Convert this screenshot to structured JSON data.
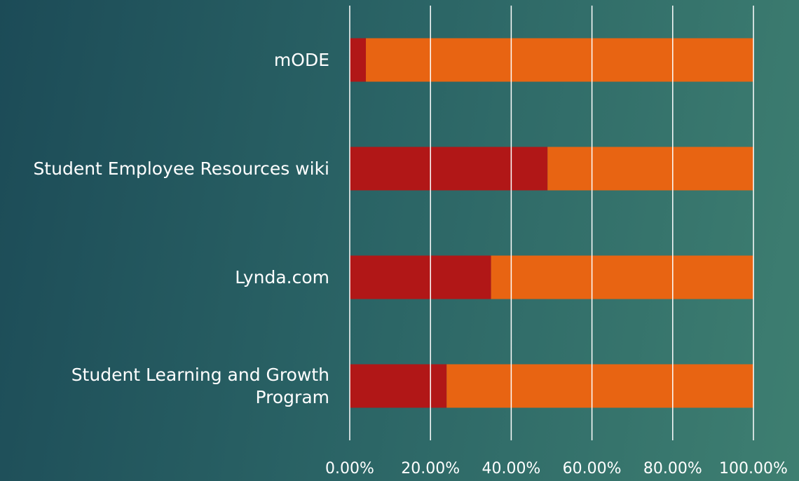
{
  "chart_data": {
    "type": "stacked_barh",
    "categories": [
      "mODE",
      "Student Employee Resources wiki",
      "Lynda.com",
      "Student Learning and Growth Program"
    ],
    "series": [
      {
        "color": "#b11717",
        "values": [
          4,
          49,
          35,
          24
        ]
      },
      {
        "color": "#e86412",
        "values": [
          96,
          51,
          65,
          76
        ]
      }
    ],
    "xlim": [
      0,
      100
    ],
    "xticks": [
      {
        "value": 0,
        "label": "0.00%"
      },
      {
        "value": 20,
        "label": "20.00%"
      },
      {
        "value": 40,
        "label": "40.00%"
      },
      {
        "value": 60,
        "label": "60.00%"
      },
      {
        "value": 80,
        "label": "80.00%"
      },
      {
        "value": 100,
        "label": "100.00%"
      }
    ],
    "grid": true
  }
}
